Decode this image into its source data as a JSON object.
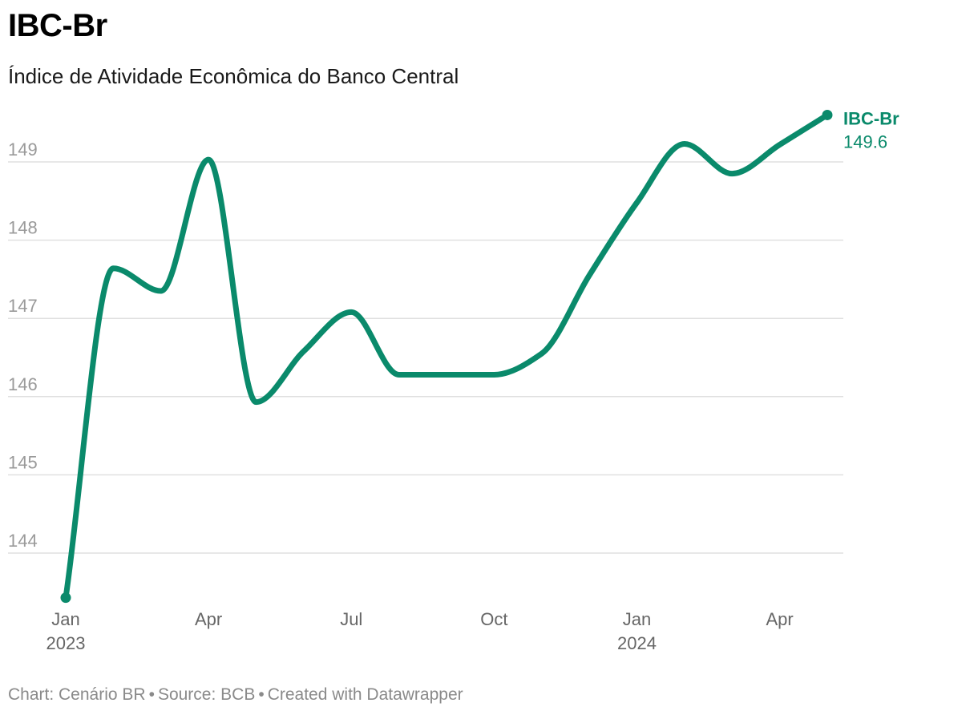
{
  "header": {
    "title": "IBC-Br",
    "subtitle": "Índice de Atividade Econômica do Banco Central"
  },
  "chart_data": {
    "type": "line",
    "title": "IBC-Br",
    "subtitle": "Índice de Atividade Econômica do Banco Central",
    "x": [
      "2023-01",
      "2023-02",
      "2023-03",
      "2023-04",
      "2023-05",
      "2023-06",
      "2023-07",
      "2023-08",
      "2023-09",
      "2023-10",
      "2023-11",
      "2023-12",
      "2024-01",
      "2024-02",
      "2024-03",
      "2024-04",
      "2024-05"
    ],
    "series": [
      {
        "name": "IBC-Br",
        "color": "#0a8a6b",
        "values": [
          143.43,
          147.64,
          147.35,
          149.03,
          145.93,
          146.58,
          147.08,
          146.28,
          146.28,
          146.28,
          146.55,
          147.55,
          148.48,
          149.23,
          148.85,
          149.22,
          149.6
        ]
      }
    ],
    "end_label": {
      "name": "IBC-Br",
      "value": "149.6"
    },
    "yticks": [
      144,
      145,
      146,
      147,
      148,
      149
    ],
    "ylim": [
      143.4,
      149.7
    ],
    "xticks": [
      {
        "index": 0,
        "label": "Jan",
        "year": "2023"
      },
      {
        "index": 3,
        "label": "Apr",
        "year": ""
      },
      {
        "index": 6,
        "label": "Jul",
        "year": ""
      },
      {
        "index": 9,
        "label": "Oct",
        "year": ""
      },
      {
        "index": 12,
        "label": "Jan",
        "year": "2024"
      },
      {
        "index": 15,
        "label": "Apr",
        "year": ""
      }
    ],
    "grid": true,
    "xlabel": "",
    "ylabel": ""
  },
  "footer": {
    "chart_credit": "Chart: Cenário BR",
    "source": "Source: BCB",
    "created_with": "Created with Datawrapper",
    "separator": "•"
  }
}
